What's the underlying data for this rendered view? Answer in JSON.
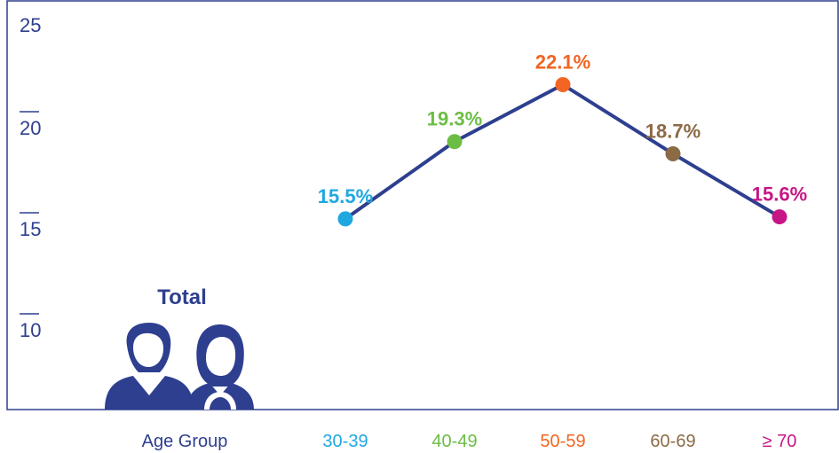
{
  "chart_data": {
    "type": "line",
    "categories": [
      "30-39",
      "40-49",
      "50-59",
      "60-69",
      "≥ 70"
    ],
    "values": [
      15.5,
      19.3,
      22.1,
      18.7,
      15.6
    ],
    "data_labels": [
      "15.5%",
      "19.3%",
      "22.1%",
      "18.7%",
      "15.6%"
    ],
    "point_colors": [
      "#1fa8e0",
      "#6cbd45",
      "#f26522",
      "#8c6a45",
      "#c71585"
    ],
    "line_color": "#2e3f8f",
    "xlabel": "Age Group",
    "y_ticks": [
      "25",
      "20",
      "15",
      "10"
    ],
    "ylim": [
      10,
      25
    ],
    "grid": false,
    "legend_text": "Total",
    "legend_icon": "male-female-users-icon"
  }
}
